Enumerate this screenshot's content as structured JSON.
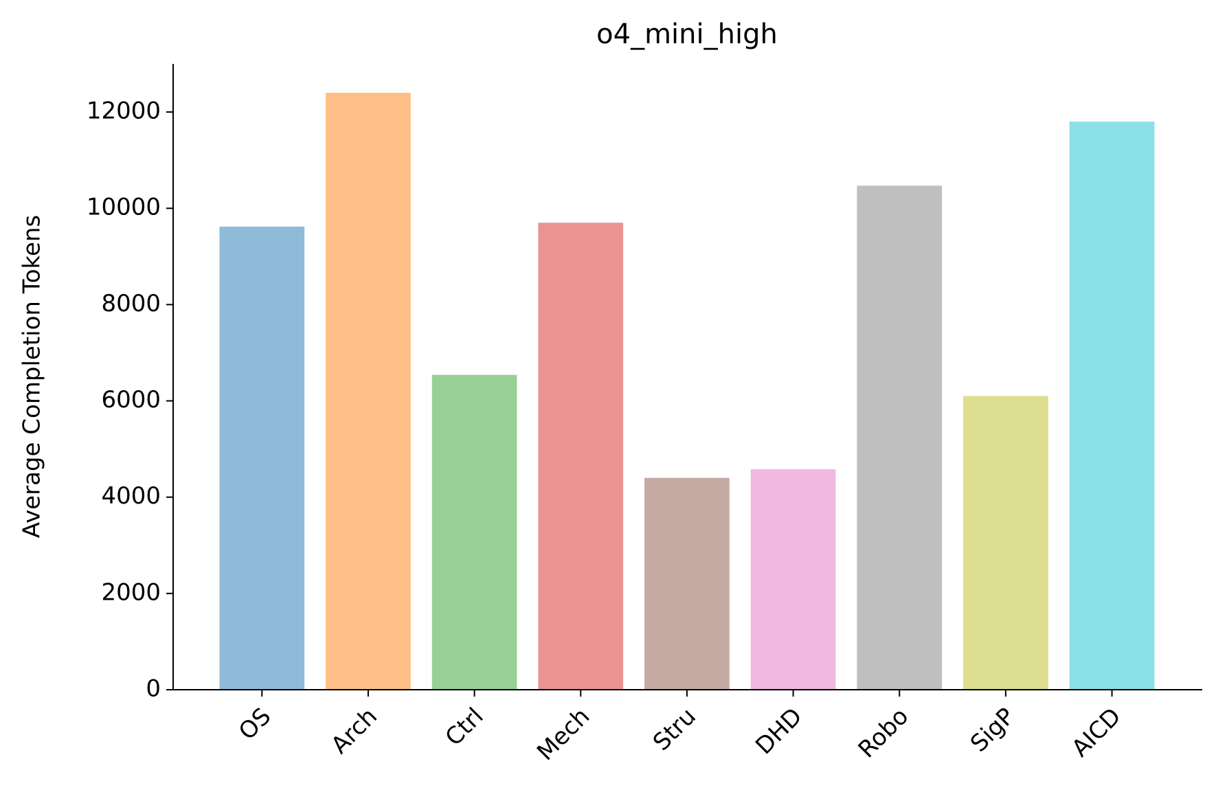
{
  "chart_data": {
    "type": "bar",
    "title": "o4_mini_high",
    "ylabel": "Average Completion Tokens",
    "categories": [
      "OS",
      "Arch",
      "Ctrl",
      "Mech",
      "Stru",
      "DHD",
      "Robo",
      "SigP",
      "AICD"
    ],
    "values": [
      9620,
      12400,
      6540,
      9700,
      4400,
      4580,
      10470,
      6100,
      11800
    ],
    "colors": [
      "#8fbbd9",
      "#ffbf86",
      "#98d095",
      "#ea9393",
      "#c5aaa3",
      "#f0b9e0",
      "#bfbfbf",
      "#dede91",
      "#8bdfe6"
    ],
    "ylim": [
      0,
      13000
    ],
    "yticks": [
      0,
      2000,
      4000,
      6000,
      8000,
      10000,
      12000
    ],
    "grid": false
  }
}
